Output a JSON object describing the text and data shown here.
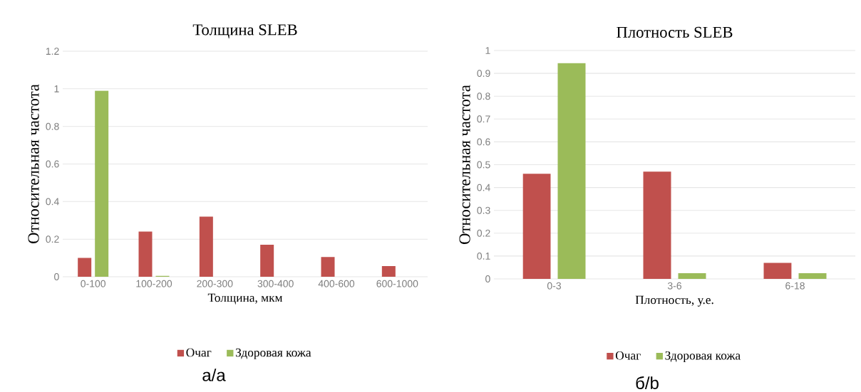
{
  "chart_data": [
    {
      "type": "bar",
      "title": "Толщина SLEB",
      "xlabel": "Толщина, мкм",
      "ylabel": "Относительная частота",
      "categories": [
        "0-100",
        "100-200",
        "200-300",
        "300-400",
        "400-600",
        "600-1000"
      ],
      "series": [
        {
          "name": "Очаг",
          "color": "#c0504d",
          "values": [
            0.1,
            0.24,
            0.32,
            0.17,
            0.105,
            0.057
          ]
        },
        {
          "name": "Здоровая кожа",
          "color": "#9bbb59",
          "values": [
            0.99,
            0.005,
            0,
            0,
            0,
            0
          ]
        }
      ],
      "ylim": [
        0,
        1.2
      ],
      "yticks": [
        0,
        0.2,
        0.4,
        0.6,
        0.8,
        1,
        1.2
      ],
      "grid": "y",
      "legend": "bottom",
      "annotations": [
        "а/a"
      ]
    },
    {
      "type": "bar",
      "title": "Плотность SLEB",
      "xlabel": "Плотность, у.е.",
      "ylabel": "Относительная частота",
      "categories": [
        "0-3",
        "3-6",
        "6-18"
      ],
      "series": [
        {
          "name": "Очаг",
          "color": "#c0504d",
          "values": [
            0.46,
            0.47,
            0.07
          ]
        },
        {
          "name": "Здоровая кожа",
          "color": "#9bbb59",
          "values": [
            0.945,
            0.025,
            0.025
          ]
        }
      ],
      "ylim": [
        0,
        1
      ],
      "yticks": [
        0,
        0.1,
        0.2,
        0.3,
        0.4,
        0.5,
        0.6,
        0.7,
        0.8,
        0.9,
        1
      ],
      "grid": "y",
      "legend": "bottom",
      "annotations": [
        "б/b"
      ]
    }
  ]
}
